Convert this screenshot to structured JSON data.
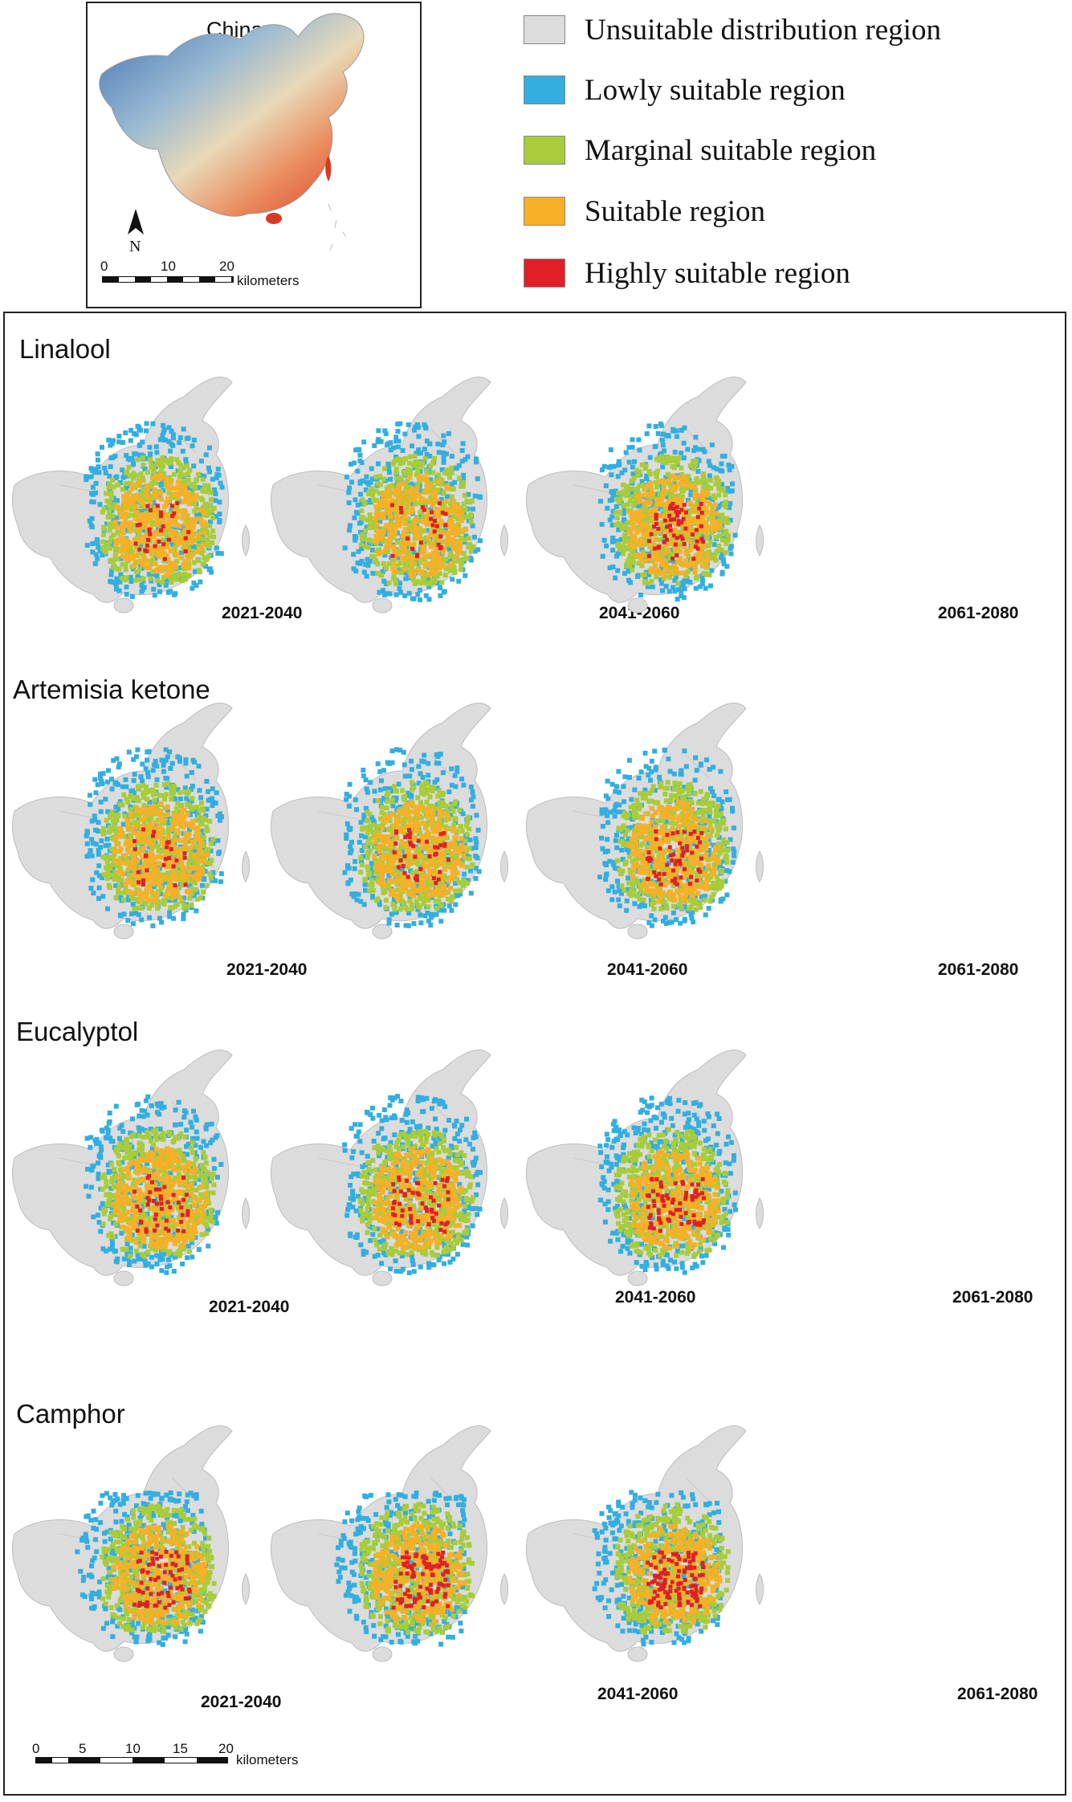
{
  "inset": {
    "title": "China",
    "north_label": "N",
    "scale_ticks": [
      "0",
      "10",
      "20"
    ],
    "scale_unit": "kilometers"
  },
  "legend": [
    {
      "label": "Unsuitable distribution region",
      "color": "#dcdcdc"
    },
    {
      "label": "Lowly suitable region",
      "color": "#33aee0"
    },
    {
      "label": "Marginal suitable region",
      "color": "#a8cc3a"
    },
    {
      "label": "Suitable region",
      "color": "#f7b027"
    },
    {
      "label": "Highly suitable region",
      "color": "#e01f26"
    }
  ],
  "rows": [
    {
      "title": "Linalool",
      "periods": [
        "2021-2040",
        "2041-2060",
        "2061-2080"
      ]
    },
    {
      "title": "Artemisia ketone",
      "periods": [
        "2021-2040",
        "2041-2060",
        "2061-2080"
      ]
    },
    {
      "title": "Eucalyptol",
      "periods": [
        "2021-2040",
        "2041-2060",
        "2061-2080"
      ]
    },
    {
      "title": "Camphor",
      "periods": [
        "2021-2040",
        "2041-2060",
        "2061-2080"
      ]
    }
  ],
  "main_scale": {
    "ticks": [
      "0",
      "5",
      "10",
      "15",
      "20"
    ],
    "unit": "kilometers"
  }
}
